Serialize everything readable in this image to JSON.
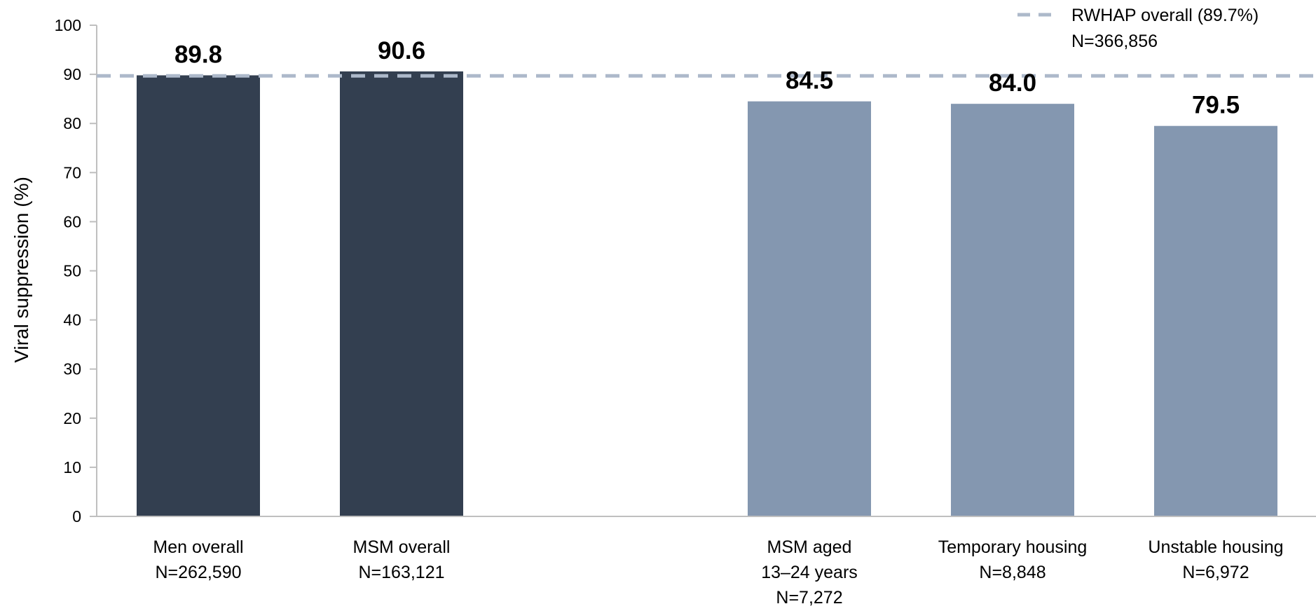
{
  "chart_data": {
    "type": "bar",
    "title": "",
    "ylabel": "Viral suppression (%)",
    "xlabel": "",
    "ylim": [
      0,
      100
    ],
    "yticks": [
      "0",
      "10",
      "20",
      "30",
      "40",
      "50",
      "60",
      "70",
      "80",
      "90",
      "100"
    ],
    "grid": false,
    "categories": [
      {
        "lines": [
          "Men overall",
          "N=262,590"
        ],
        "value": 89.8,
        "label": "89.8",
        "group": "overall"
      },
      {
        "lines": [
          "MSM overall",
          "N=163,121"
        ],
        "value": 90.6,
        "label": "90.6",
        "group": "overall"
      },
      {
        "lines": [
          "MSM aged",
          "13–24 years",
          "N=7,272"
        ],
        "value": 84.5,
        "label": "84.5",
        "group": "subgroup"
      },
      {
        "lines": [
          "Temporary housing",
          "N=8,848"
        ],
        "value": 84.0,
        "label": "84.0",
        "group": "subgroup"
      },
      {
        "lines": [
          "Unstable housing",
          "N=6,972"
        ],
        "value": 79.5,
        "label": "79.5",
        "group": "subgroup"
      }
    ],
    "reference_line": {
      "value": 89.7,
      "style": "dashed",
      "label_lines": [
        "RWHAP overall (89.7%)",
        "N=366,856"
      ]
    },
    "legend_position": "top-right",
    "colors": {
      "overall": "#333f50",
      "subgroup": "#8497b0",
      "reference": "#adb9ca",
      "axis": "#bfbfbf"
    }
  }
}
